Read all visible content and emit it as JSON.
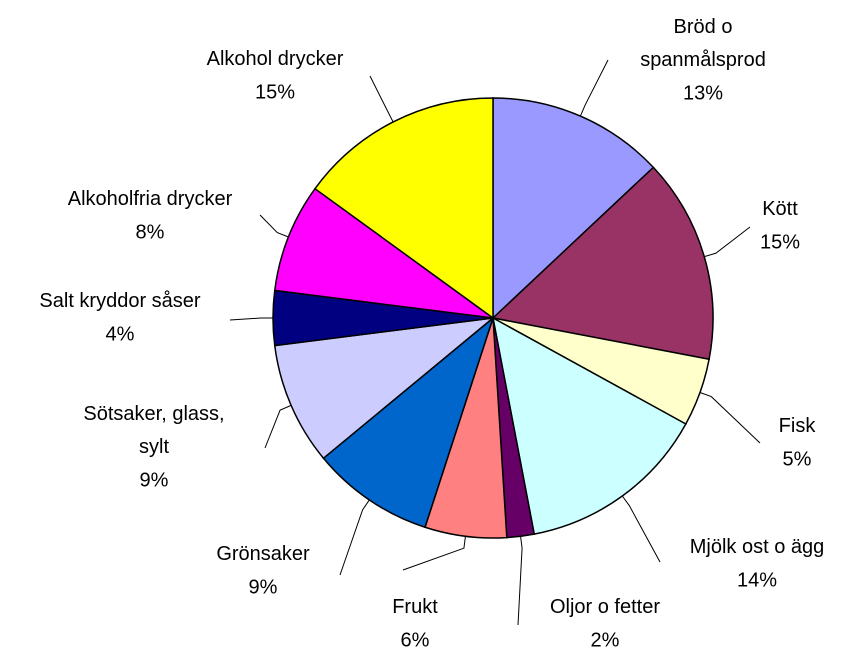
{
  "chart_data": {
    "type": "pie",
    "categories": [
      "Bröd o\nspanmålsprod",
      "Kött",
      "Fisk",
      "Mjölk ost o ägg",
      "Oljor o fetter",
      "Frukt",
      "Grönsaker",
      "Sötsaker, glass,\nsylt",
      "Salt kryddor såser",
      "Alkoholfria drycker",
      "Alkohol drycker"
    ],
    "values": [
      13,
      15,
      5,
      14,
      2,
      6,
      9,
      9,
      4,
      8,
      15
    ],
    "value_labels": [
      "13%",
      "15%",
      "5%",
      "14%",
      "2%",
      "6%",
      "9%",
      "9%",
      "4%",
      "8%",
      "15%"
    ],
    "colors": [
      "#9999ff",
      "#993366",
      "#ffffcc",
      "#ccffff",
      "#660066",
      "#ff8080",
      "#0066cc",
      "#ccccff",
      "#000080",
      "#ff00ff",
      "#ffff00"
    ]
  }
}
